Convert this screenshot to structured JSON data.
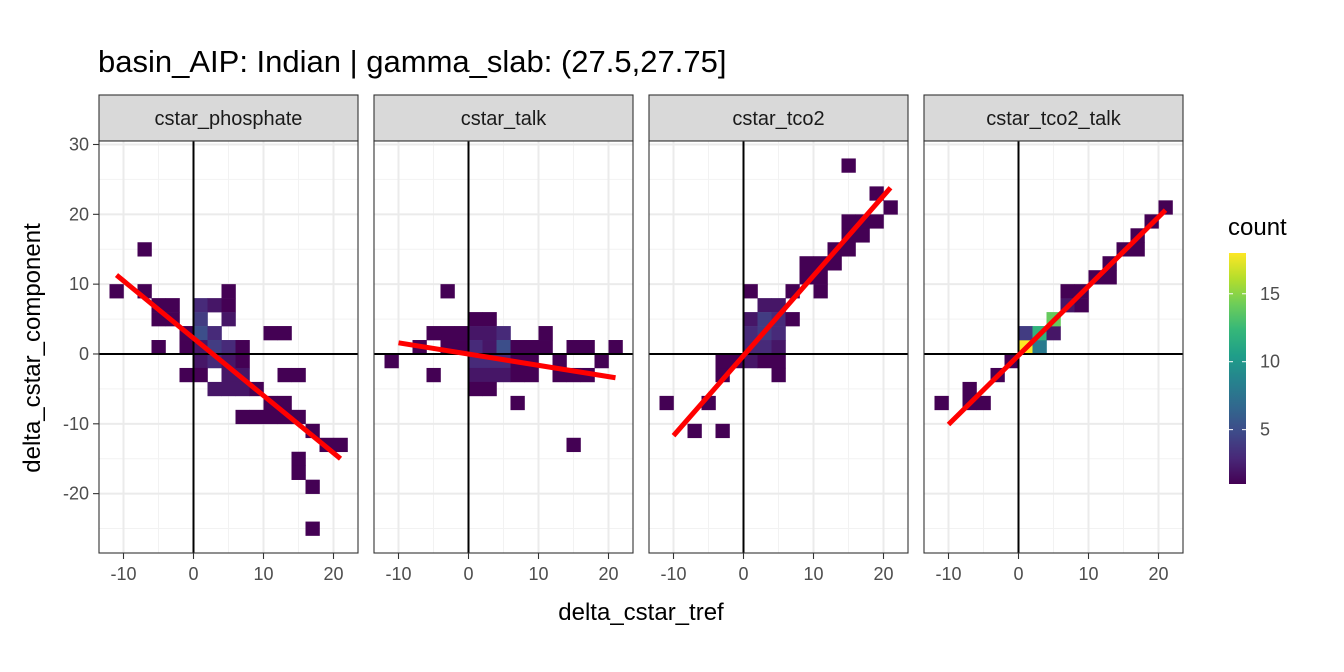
{
  "chart_data": {
    "type": "heatmap",
    "title": "basin_AIP: Indian | gamma_slab:  (27.5,27.75]",
    "xlabel": "delta_cstar_tref",
    "ylabel": "delta_cstar_component",
    "xlim": [
      -13.5,
      23.5
    ],
    "ylim": [
      -28.5,
      30.5
    ],
    "x_ticks": [
      -10,
      0,
      10,
      20
    ],
    "y_ticks": [
      -20,
      -10,
      0,
      10,
      20,
      30
    ],
    "x_tick_labels": [
      "-10",
      "0",
      "10",
      "20"
    ],
    "y_tick_labels": [
      "-20",
      "-10",
      "0",
      "10",
      "20",
      "30"
    ],
    "bin_width": 2,
    "grid": true,
    "reference_lines": {
      "x": 0,
      "y": 0
    },
    "legend": {
      "title": "count",
      "position": "right",
      "range": [
        1,
        18
      ],
      "ticks": [
        5,
        10,
        15
      ],
      "tick_labels": [
        "5",
        "10",
        "15"
      ],
      "colormap": [
        "#440154",
        "#482878",
        "#3E4A89",
        "#31688E",
        "#26828E",
        "#1F9E89",
        "#35B779",
        "#6DCD59",
        "#B4DE2C",
        "#FDE725"
      ]
    },
    "fit_color": "#ff0000",
    "facets": [
      {
        "label": "cstar_phosphate",
        "fit": {
          "x": [
            -11,
            21
          ],
          "y": [
            11.3,
            -15
          ]
        },
        "bins": [
          [
            -11,
            9,
            1
          ],
          [
            -7,
            15,
            1
          ],
          [
            -7,
            9,
            1
          ],
          [
            -5,
            7,
            1
          ],
          [
            -5,
            5,
            1
          ],
          [
            -5,
            1,
            1
          ],
          [
            -3,
            7,
            1
          ],
          [
            -3,
            5,
            1
          ],
          [
            1,
            7,
            3
          ],
          [
            1,
            5,
            4
          ],
          [
            1,
            3,
            5
          ],
          [
            1,
            1,
            2
          ],
          [
            1,
            -1,
            2
          ],
          [
            1,
            -3,
            1
          ],
          [
            3,
            7,
            2
          ],
          [
            3,
            3,
            3
          ],
          [
            3,
            1,
            4
          ],
          [
            3,
            -1,
            3
          ],
          [
            3,
            -5,
            2
          ],
          [
            5,
            9,
            1
          ],
          [
            5,
            7,
            1
          ],
          [
            5,
            5,
            2
          ],
          [
            5,
            1,
            3
          ],
          [
            5,
            -1,
            2
          ],
          [
            5,
            -3,
            2
          ],
          [
            5,
            -5,
            2
          ],
          [
            -1,
            -3,
            1
          ],
          [
            -1,
            1,
            1
          ],
          [
            -1,
            3,
            1
          ],
          [
            7,
            1,
            1
          ],
          [
            7,
            -1,
            1
          ],
          [
            7,
            -3,
            2
          ],
          [
            7,
            -5,
            2
          ],
          [
            7,
            -9,
            1
          ],
          [
            9,
            -5,
            1
          ],
          [
            9,
            -9,
            1
          ],
          [
            11,
            3,
            1
          ],
          [
            11,
            -7,
            1
          ],
          [
            11,
            -9,
            1
          ],
          [
            13,
            3,
            1
          ],
          [
            13,
            -3,
            1
          ],
          [
            13,
            -7,
            1
          ],
          [
            13,
            -9,
            1
          ],
          [
            15,
            -3,
            1
          ],
          [
            15,
            -9,
            1
          ],
          [
            15,
            -15,
            1
          ],
          [
            15,
            -17,
            1
          ],
          [
            17,
            -11,
            1
          ],
          [
            17,
            -19,
            1
          ],
          [
            17,
            -25,
            1
          ],
          [
            19,
            -13,
            1
          ],
          [
            21,
            -13,
            1
          ]
        ]
      },
      {
        "label": "cstar_talk",
        "fit": {
          "x": [
            -10,
            21
          ],
          "y": [
            1.6,
            -3.4
          ]
        },
        "bins": [
          [
            -11,
            -1,
            1
          ],
          [
            -7,
            1,
            1
          ],
          [
            -5,
            3,
            1
          ],
          [
            -5,
            -3,
            1
          ],
          [
            -3,
            9,
            1
          ],
          [
            -3,
            3,
            1
          ],
          [
            -3,
            1,
            1
          ],
          [
            -1,
            3,
            1
          ],
          [
            -1,
            1,
            1
          ],
          [
            1,
            5,
            1
          ],
          [
            1,
            3,
            2
          ],
          [
            1,
            1,
            3
          ],
          [
            1,
            -1,
            3
          ],
          [
            1,
            -3,
            2
          ],
          [
            1,
            -5,
            1
          ],
          [
            3,
            5,
            1
          ],
          [
            3,
            3,
            2
          ],
          [
            3,
            1,
            2
          ],
          [
            3,
            -1,
            3
          ],
          [
            3,
            -3,
            2
          ],
          [
            3,
            -5,
            1
          ],
          [
            5,
            3,
            3
          ],
          [
            5,
            1,
            5
          ],
          [
            5,
            -1,
            3
          ],
          [
            5,
            -3,
            2
          ],
          [
            7,
            1,
            1
          ],
          [
            7,
            -1,
            1
          ],
          [
            7,
            -3,
            1
          ],
          [
            7,
            -7,
            1
          ],
          [
            9,
            1,
            1
          ],
          [
            9,
            -1,
            1
          ],
          [
            9,
            -3,
            1
          ],
          [
            11,
            3,
            1
          ],
          [
            11,
            1,
            1
          ],
          [
            13,
            -1,
            1
          ],
          [
            13,
            -3,
            1
          ],
          [
            15,
            1,
            1
          ],
          [
            15,
            -3,
            1
          ],
          [
            15,
            -13,
            1
          ],
          [
            17,
            1,
            1
          ],
          [
            17,
            -3,
            1
          ],
          [
            19,
            -1,
            1
          ],
          [
            21,
            1,
            1
          ]
        ]
      },
      {
        "label": "cstar_tco2",
        "fit": {
          "x": [
            -10,
            21
          ],
          "y": [
            -11.7,
            23.8
          ]
        },
        "bins": [
          [
            -11,
            -7,
            1
          ],
          [
            -7,
            -11,
            1
          ],
          [
            -5,
            -7,
            1
          ],
          [
            -3,
            -11,
            1
          ],
          [
            -3,
            -3,
            1
          ],
          [
            -3,
            -1,
            1
          ],
          [
            -1,
            -1,
            1
          ],
          [
            1,
            9,
            1
          ],
          [
            1,
            5,
            2
          ],
          [
            1,
            3,
            3
          ],
          [
            1,
            1,
            3
          ],
          [
            1,
            -1,
            2
          ],
          [
            3,
            7,
            2
          ],
          [
            3,
            5,
            4
          ],
          [
            3,
            3,
            4
          ],
          [
            3,
            1,
            3
          ],
          [
            3,
            -1,
            1
          ],
          [
            5,
            7,
            2
          ],
          [
            5,
            5,
            3
          ],
          [
            5,
            3,
            3
          ],
          [
            5,
            1,
            2
          ],
          [
            5,
            -1,
            1
          ],
          [
            5,
            -3,
            1
          ],
          [
            7,
            5,
            1
          ],
          [
            7,
            9,
            1
          ],
          [
            9,
            13,
            1
          ],
          [
            9,
            11,
            1
          ],
          [
            11,
            13,
            1
          ],
          [
            11,
            11,
            1
          ],
          [
            11,
            9,
            1
          ],
          [
            13,
            15,
            1
          ],
          [
            13,
            13,
            1
          ],
          [
            15,
            27,
            1
          ],
          [
            15,
            19,
            1
          ],
          [
            15,
            17,
            1
          ],
          [
            15,
            15,
            1
          ],
          [
            17,
            19,
            1
          ],
          [
            17,
            17,
            1
          ],
          [
            19,
            23,
            1
          ],
          [
            19,
            19,
            1
          ],
          [
            21,
            21,
            1
          ]
        ]
      },
      {
        "label": "cstar_tco2_talk",
        "fit": {
          "x": [
            -10,
            21
          ],
          "y": [
            -10.1,
            20.6
          ]
        },
        "bins": [
          [
            -11,
            -7,
            1
          ],
          [
            -7,
            -5,
            1
          ],
          [
            -7,
            -7,
            1
          ],
          [
            -5,
            -7,
            1
          ],
          [
            -3,
            -3,
            1
          ],
          [
            -1,
            -1,
            1
          ],
          [
            1,
            1,
            18
          ],
          [
            1,
            3,
            4
          ],
          [
            3,
            1,
            8
          ],
          [
            3,
            3,
            12
          ],
          [
            5,
            3,
            2
          ],
          [
            5,
            5,
            14
          ],
          [
            7,
            7,
            2
          ],
          [
            7,
            9,
            1
          ],
          [
            9,
            9,
            1
          ],
          [
            9,
            7,
            1
          ],
          [
            11,
            11,
            1
          ],
          [
            13,
            13,
            1
          ],
          [
            13,
            11,
            1
          ],
          [
            15,
            15,
            1
          ],
          [
            17,
            17,
            1
          ],
          [
            17,
            15,
            1
          ],
          [
            19,
            19,
            1
          ],
          [
            21,
            21,
            1
          ]
        ]
      }
    ]
  }
}
